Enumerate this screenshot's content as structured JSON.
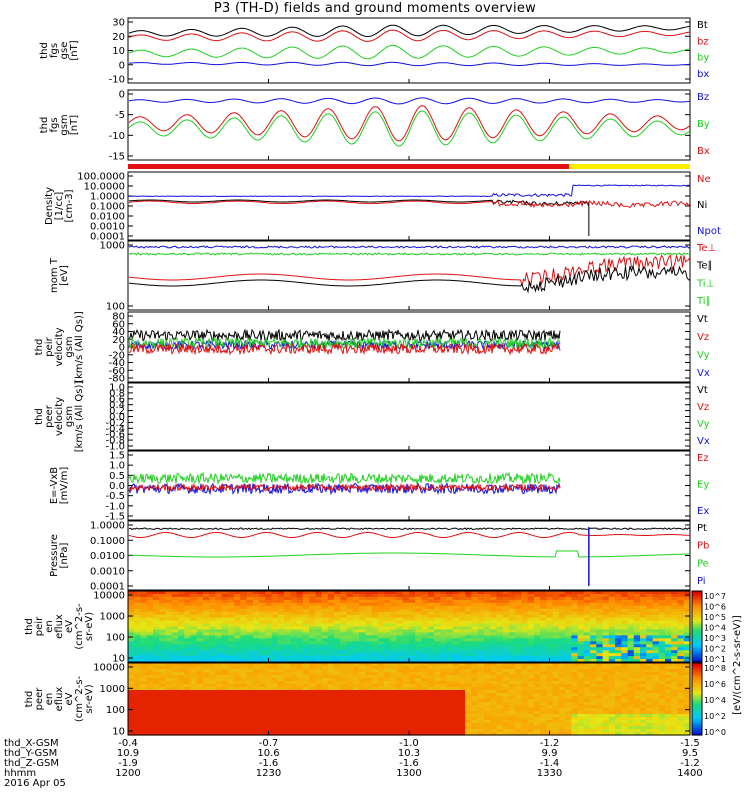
{
  "title": "P3 (TH-D) fields and ground moments overview",
  "colors": {
    "black": "#000000",
    "red": "#e01010",
    "green": "#20d020",
    "blue": "#1010e0",
    "yellow": "#ffee00"
  },
  "chart_data": [
    {
      "type": "line",
      "panel": "fgs_gse",
      "ylabel": [
        "thd",
        "fgs",
        "gse",
        "[nT]"
      ],
      "ylim": [
        -10,
        30
      ],
      "yticks": [
        "30",
        "20",
        "10",
        "0",
        "-10"
      ],
      "series": [
        {
          "name": "Bt",
          "color": "black",
          "approx": [
            18,
            28
          ]
        },
        {
          "name": "bz",
          "color": "red",
          "approx": [
            15,
            25
          ]
        },
        {
          "name": "by",
          "color": "green",
          "approx": [
            5,
            15
          ]
        },
        {
          "name": "bx",
          "color": "blue",
          "approx": [
            -2,
            3
          ]
        }
      ]
    },
    {
      "type": "line",
      "panel": "fgs_gsm",
      "ylabel": [
        "thd",
        "fgs",
        "gsm",
        "[nT]"
      ],
      "ylim": [
        -17,
        2
      ],
      "yticks": [
        "0",
        "-5",
        "-10",
        "-15"
      ],
      "series": [
        {
          "name": "Bz",
          "color": "blue",
          "approx": [
            -3,
            0
          ]
        },
        {
          "name": "By",
          "color": "green",
          "approx": [
            -15,
            -5
          ]
        },
        {
          "name": "Bx",
          "color": "red",
          "approx": [
            -15,
            -4
          ]
        }
      ]
    },
    {
      "type": "line",
      "panel": "density",
      "ylabel": [
        "Density",
        "[1/cc]",
        "[cm-3]"
      ],
      "log": true,
      "yticks": [
        "100.0000",
        "10.0000",
        "1.0000",
        "0.1000",
        "0.0100",
        "0.0010",
        "0.0001"
      ],
      "series": [
        {
          "name": "Ne",
          "color": "red"
        },
        {
          "name": "Ni",
          "color": "black"
        },
        {
          "name": "Npot",
          "color": "blue"
        }
      ]
    },
    {
      "type": "line",
      "panel": "temperature",
      "ylabel": [
        "mom T",
        "[eV]"
      ],
      "log": true,
      "yticks": [
        "1000",
        "100"
      ],
      "series": [
        {
          "name": "Te⊥",
          "color": "red"
        },
        {
          "name": "Te∥",
          "color": "black"
        },
        {
          "name": "Ti⊥",
          "color": "green"
        },
        {
          "name": "Ti∥",
          "color": "green"
        }
      ]
    },
    {
      "type": "line",
      "panel": "peir_velocity",
      "ylabel": [
        "thd",
        "peir",
        "velocity",
        "gsm",
        "[km/s (All Qs)]"
      ],
      "ylim": [
        -80,
        80
      ],
      "yticks": [
        "80",
        "60",
        "40",
        "20",
        "0",
        "-20",
        "-40",
        "-60",
        "-80"
      ],
      "series": [
        {
          "name": "Vt",
          "color": "black"
        },
        {
          "name": "Vz",
          "color": "red"
        },
        {
          "name": "Vy",
          "color": "green"
        },
        {
          "name": "Vx",
          "color": "blue"
        }
      ]
    },
    {
      "type": "line",
      "panel": "peer_velocity",
      "ylabel": [
        "thd",
        "peer",
        "velocity",
        "gsm",
        "[km/s (All Qs)]"
      ],
      "ylim": [
        -1,
        1
      ],
      "yticks": [
        "1.0",
        "0.8",
        "0.6",
        "0.4",
        "0.2",
        "0.0",
        "-0.2",
        "-0.4",
        "-0.6",
        "-0.8",
        "-1.0"
      ],
      "series": [
        {
          "name": "Vt",
          "color": "black"
        },
        {
          "name": "Vz",
          "color": "red"
        },
        {
          "name": "Vy",
          "color": "green"
        },
        {
          "name": "Vx",
          "color": "blue"
        }
      ]
    },
    {
      "type": "line",
      "panel": "efield",
      "ylabel": [
        "E=-VxB",
        "[mV/m]"
      ],
      "ylim": [
        -1.5,
        1.5
      ],
      "yticks": [
        "1.5",
        "1.0",
        "0.5",
        "0.0",
        "-0.5",
        "-1.0",
        "-1.5"
      ],
      "series": [
        {
          "name": "Ez",
          "color": "red"
        },
        {
          "name": "Ey",
          "color": "green"
        },
        {
          "name": "Ex",
          "color": "blue"
        }
      ]
    },
    {
      "type": "line",
      "panel": "pressure",
      "ylabel": [
        "Pressure",
        "[nPa]"
      ],
      "log": true,
      "yticks": [
        "1.0000",
        "0.1000",
        "0.0100",
        "0.0010",
        "0.0001"
      ],
      "series": [
        {
          "name": "Pt",
          "color": "black"
        },
        {
          "name": "Pb",
          "color": "red"
        },
        {
          "name": "Pe",
          "color": "green"
        },
        {
          "name": "Pi",
          "color": "blue"
        }
      ]
    },
    {
      "type": "heatmap",
      "panel": "peir_spectrogram",
      "ylabel": [
        "thd",
        "peir",
        "en",
        "eflux",
        "eV",
        "(cm^2-s-",
        "sr-eV)"
      ],
      "yticks": [
        "10000",
        "1000",
        "100",
        "10"
      ],
      "colorbar": {
        "ticks": [
          "10^7",
          "10^6",
          "10^5",
          "10^4",
          "10^3",
          "10^2",
          "10^1"
        ]
      }
    },
    {
      "type": "heatmap",
      "panel": "peer_spectrogram",
      "ylabel": [
        "thd",
        "peer",
        "en",
        "eflux",
        "eV",
        "(cm^2-s-",
        "sr-eV)"
      ],
      "yticks": [
        "10000",
        "1000",
        "100",
        "10"
      ],
      "colorbar": {
        "ticks": [
          "10^8",
          "10^6",
          "10^4",
          "10^2",
          "10^0"
        ]
      }
    }
  ],
  "colorbar_unit": "[eV/(cm^2-s-sr-eV)]",
  "footer": {
    "labels": [
      "thd_X-GSM",
      "thd_Y-GSM",
      "thd_Z-GSM",
      "hhmm",
      "2016 Apr 05"
    ],
    "x": [
      "-0.4",
      "-0.7",
      "-1.0",
      "-1.2",
      "-1.5"
    ],
    "y": [
      "10.9",
      "10.6",
      "10.3",
      "9.9",
      "9.5"
    ],
    "z": [
      "-1.9",
      "-1.6",
      "-1.6",
      "-1.4",
      "-1.2"
    ],
    "hhmm": [
      "1200",
      "1230",
      "1300",
      "1330",
      "1400"
    ]
  }
}
